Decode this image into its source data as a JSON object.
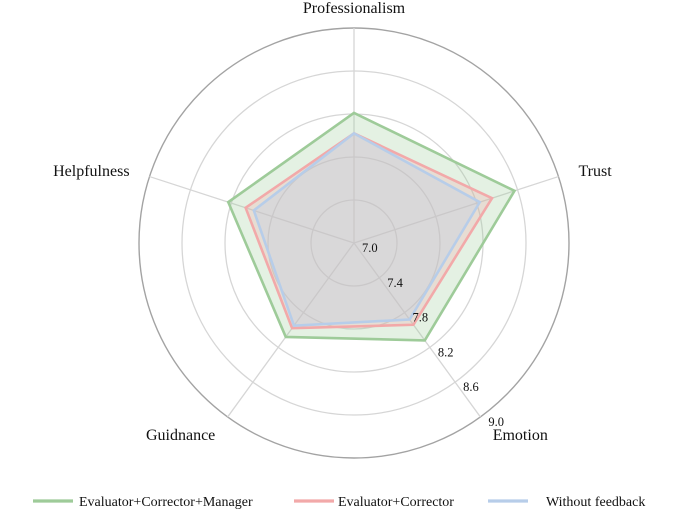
{
  "chart_data": {
    "type": "radar",
    "axes": [
      "Professionalism",
      "Trust",
      "Emotion",
      "Guidnance",
      "Helpfulness"
    ],
    "rlim": [
      7.0,
      9.0
    ],
    "ticks": [
      "7.0",
      "7.4",
      "7.8",
      "8.2",
      "8.6",
      "9.0"
    ],
    "tick_values": [
      7.0,
      7.4,
      7.8,
      8.2,
      8.6,
      9.0
    ],
    "grid": true,
    "legend_position": "bottom",
    "series": [
      {
        "name": "Evaluator+Corrector+Manager",
        "values": [
          8.21,
          8.57,
          8.12,
          8.08,
          8.23
        ],
        "color": "#9ecb99"
      },
      {
        "name": "Evaluator+Corrector",
        "values": [
          8.02,
          8.35,
          7.94,
          7.98,
          8.06
        ],
        "color": "#f2a9a9"
      },
      {
        "name": "Without feedback",
        "values": [
          8.02,
          8.23,
          7.88,
          7.95,
          7.98
        ],
        "color": "#b7cde9"
      }
    ]
  }
}
